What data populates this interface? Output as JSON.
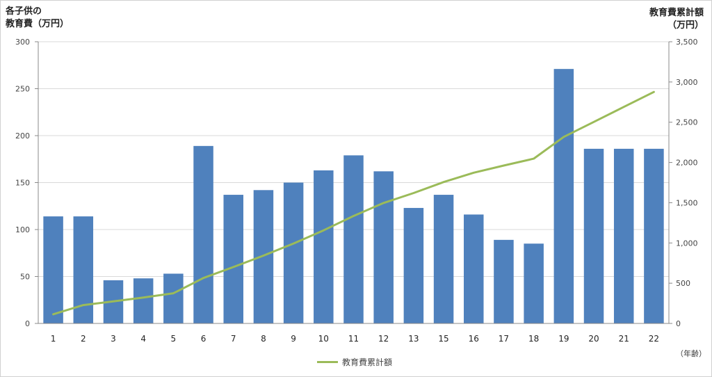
{
  "chart_data": {
    "type": "bar+line",
    "left_axis_label": [
      "各子供の",
      "教育費（万円）"
    ],
    "right_axis_label": [
      "教育費累計額",
      "（万円）"
    ],
    "x_unit_label": "（年齢）",
    "categories": [
      "1",
      "2",
      "3",
      "4",
      "5",
      "6",
      "7",
      "8",
      "9",
      "10",
      "11",
      "12",
      "13",
      "15",
      "16",
      "17",
      "18",
      "19",
      "20",
      "21",
      "22"
    ],
    "bar_series": {
      "values": [
        114,
        114,
        46,
        48,
        53,
        189,
        137,
        142,
        150,
        163,
        179,
        162,
        123,
        137,
        116,
        89,
        85,
        271,
        186,
        186,
        186
      ],
      "color": "#4f81bd",
      "axis": "left"
    },
    "line_series": {
      "name": "教育費累計額",
      "values": [
        114,
        228,
        274,
        322,
        375,
        564,
        701,
        843,
        993,
        1156,
        1335,
        1497,
        1620,
        1757,
        1873,
        1962,
        2047,
        2318,
        2504,
        2690,
        2876
      ],
      "color": "#9bbb59",
      "axis": "right"
    },
    "left_ylim": [
      0,
      300
    ],
    "left_ticks": [
      "0",
      "50",
      "100",
      "150",
      "200",
      "250",
      "300"
    ],
    "right_ylim": [
      0,
      3500
    ],
    "right_ticks": [
      "0",
      "500",
      "1,000",
      "1,500",
      "2,000",
      "2,500",
      "3,000",
      "3,500"
    ],
    "grid": true,
    "legend_position": "bottom"
  }
}
